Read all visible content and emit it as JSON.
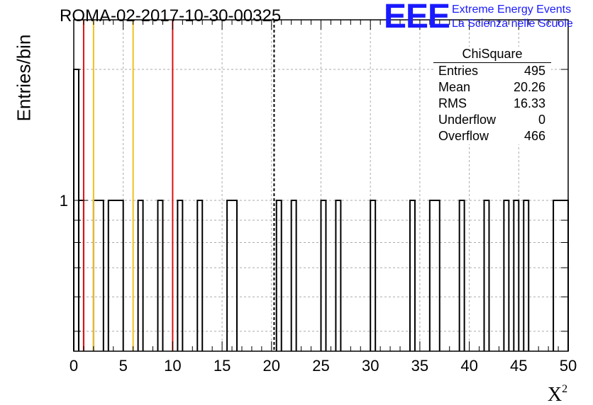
{
  "chart_data": {
    "type": "bar",
    "title": "ROMA-02-2017-10-30-00325",
    "xlabel": "X²",
    "ylabel": "Entries/bin",
    "xlim": [
      0,
      50
    ],
    "ylim": [
      0.45,
      2.6
    ],
    "log_y": true,
    "grid": true,
    "bin_width": 0.5,
    "x_ticks": [
      "0",
      "5",
      "10",
      "15",
      "20",
      "25",
      "30",
      "35",
      "40",
      "45",
      "50"
    ],
    "y_ticks": [
      "1"
    ],
    "bars": [
      {
        "x0": 0.0,
        "x1": 0.5,
        "value": 2
      },
      {
        "x0": 0.5,
        "x1": 1.0,
        "value": 1
      },
      {
        "x0": 2.0,
        "x1": 3.0,
        "value": 1
      },
      {
        "x0": 3.5,
        "x1": 5.0,
        "value": 1
      },
      {
        "x0": 6.5,
        "x1": 7.0,
        "value": 1
      },
      {
        "x0": 8.5,
        "x1": 9.0,
        "value": 1
      },
      {
        "x0": 10.5,
        "x1": 11.0,
        "value": 1
      },
      {
        "x0": 12.5,
        "x1": 13.0,
        "value": 1
      },
      {
        "x0": 15.5,
        "x1": 16.5,
        "value": 1
      },
      {
        "x0": 20.5,
        "x1": 21.0,
        "value": 1
      },
      {
        "x0": 22.0,
        "x1": 22.5,
        "value": 1
      },
      {
        "x0": 25.0,
        "x1": 25.5,
        "value": 1
      },
      {
        "x0": 26.5,
        "x1": 27.0,
        "value": 1
      },
      {
        "x0": 30.0,
        "x1": 30.5,
        "value": 1
      },
      {
        "x0": 34.0,
        "x1": 34.5,
        "value": 1
      },
      {
        "x0": 36.0,
        "x1": 37.0,
        "value": 1
      },
      {
        "x0": 39.0,
        "x1": 39.5,
        "value": 1
      },
      {
        "x0": 41.5,
        "x1": 42.0,
        "value": 1
      },
      {
        "x0": 43.5,
        "x1": 44.0,
        "value": 1
      },
      {
        "x0": 44.5,
        "x1": 45.0,
        "value": 1
      },
      {
        "x0": 45.5,
        "x1": 46.0,
        "value": 1
      },
      {
        "x0": 48.5,
        "x1": 50.0,
        "value": 1
      }
    ],
    "vertical_lines": [
      {
        "x": 1.0,
        "color": "#dd1111",
        "style": "solid"
      },
      {
        "x": 2.0,
        "color": "#f0c020",
        "style": "solid"
      },
      {
        "x": 6.0,
        "color": "#f0c020",
        "style": "solid"
      },
      {
        "x": 10.0,
        "color": "#dd1111",
        "style": "solid"
      },
      {
        "x": 20.26,
        "color": "#000000",
        "style": "dashed"
      }
    ],
    "stats_box": {
      "title": "ChiSquare",
      "rows": [
        {
          "label": "Entries",
          "value": "495"
        },
        {
          "label": "Mean",
          "value": "20.26"
        },
        {
          "label": "RMS",
          "value": "16.33"
        },
        {
          "label": "Underflow",
          "value": "0"
        },
        {
          "label": "Overflow",
          "value": "466"
        }
      ]
    }
  },
  "logo": {
    "mark": "EEE",
    "line1": "Extreme Energy Events",
    "line2": "La Scienza nelle Scuole",
    "color": "#1a1aff"
  }
}
